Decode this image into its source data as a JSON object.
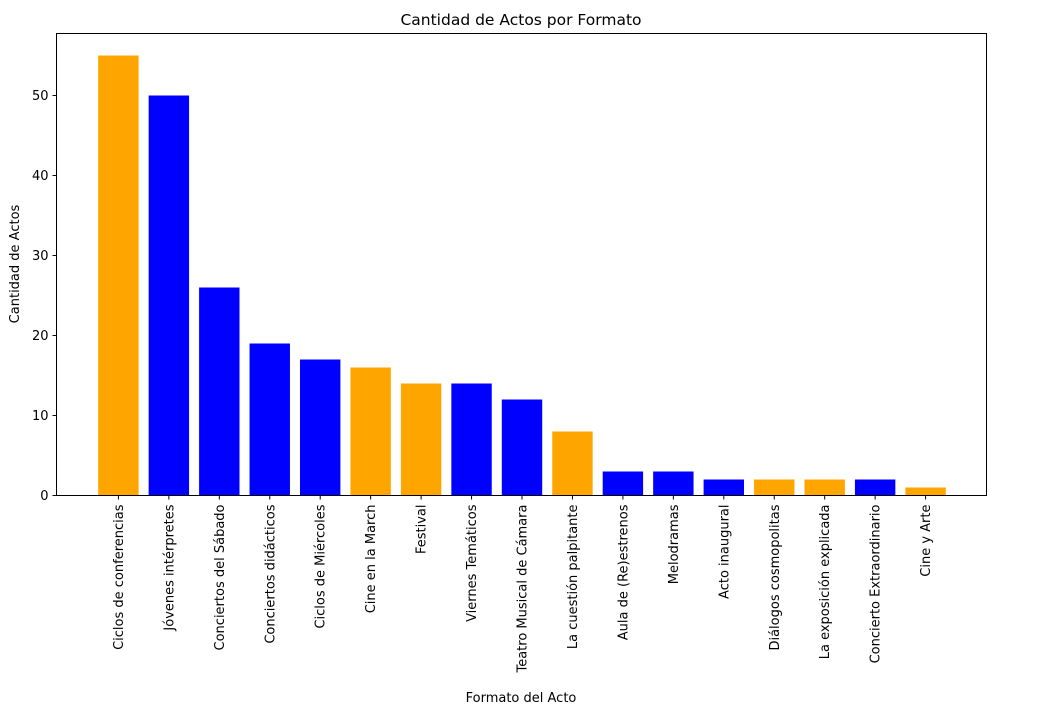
{
  "chart_data": {
    "type": "bar",
    "title": "Cantidad de Actos por Formato",
    "xlabel": "Formato del Acto",
    "ylabel": "Cantidad de Actos",
    "ylim": [
      0,
      57.75
    ],
    "yticks": [
      0,
      10,
      20,
      30,
      40,
      50
    ],
    "grid": false,
    "colors": {
      "orange": "#FFA500",
      "blue": "#0000FF"
    },
    "categories": [
      "Ciclos de conferencias",
      "Jóvenes intérpretes",
      "Conciertos del Sábado",
      "Conciertos didácticos",
      "Ciclos de Miércoles",
      "Cine en la March",
      "Festival",
      "Viernes Temáticos",
      "Teatro Musical de Cámara",
      "La cuestión palpitante",
      "Aula de (Re)estrenos",
      "Melodramas",
      "Acto inaugural",
      "Diálogos cosmopolitas",
      "La exposición explicada",
      "Concierto Extraordinario",
      "Cine y Arte"
    ],
    "values": [
      55,
      50,
      26,
      19,
      17,
      16,
      14,
      14,
      12,
      8,
      3,
      3,
      2,
      2,
      2,
      2,
      1
    ],
    "bar_colors": [
      "orange",
      "blue",
      "blue",
      "blue",
      "blue",
      "orange",
      "orange",
      "blue",
      "blue",
      "orange",
      "blue",
      "blue",
      "blue",
      "orange",
      "orange",
      "blue",
      "orange"
    ]
  }
}
